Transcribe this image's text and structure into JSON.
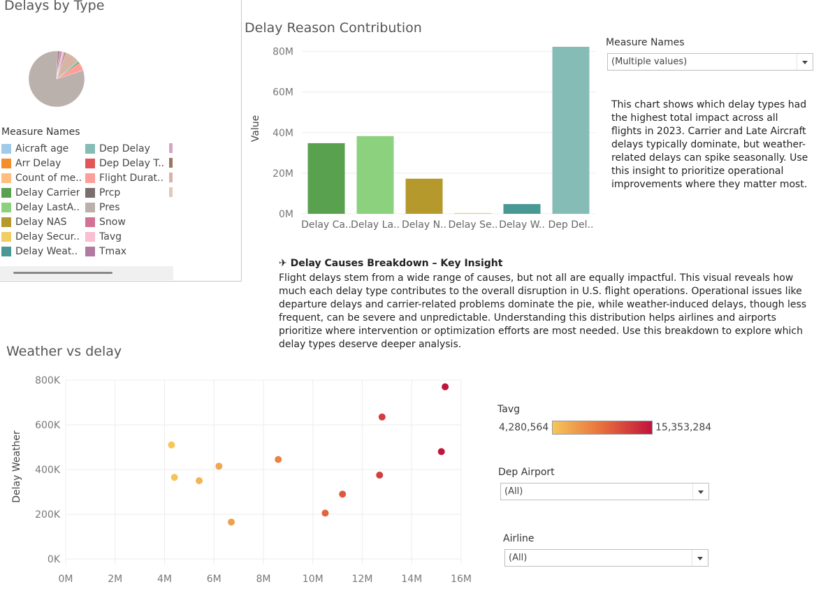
{
  "pie_panel": {
    "title": "Delays by Type",
    "legend_title": "Measure Names",
    "legend_items": [
      {
        "label": "Aicraft age",
        "color": "#a0cbe8"
      },
      {
        "label": "Arr Delay",
        "color": "#f28e2b"
      },
      {
        "label": "Count of me..",
        "color": "#ffbe7d"
      },
      {
        "label": "Delay Carrier",
        "color": "#59a14f"
      },
      {
        "label": "Delay LastA..",
        "color": "#8cd17d"
      },
      {
        "label": "Delay NAS",
        "color": "#b6992d"
      },
      {
        "label": "Delay Secur..",
        "color": "#f1ce63"
      },
      {
        "label": "Delay Weat..",
        "color": "#499894"
      },
      {
        "label": "Dep Delay",
        "color": "#86bcb6"
      },
      {
        "label": "Dep Delay T..",
        "color": "#e15759"
      },
      {
        "label": "Flight Durat..",
        "color": "#ff9d9a"
      },
      {
        "label": "Prcp",
        "color": "#79706e"
      },
      {
        "label": "Pres",
        "color": "#bab0ac"
      },
      {
        "label": "Snow",
        "color": "#d37295"
      },
      {
        "label": "Tavg",
        "color": "#fabfd2"
      },
      {
        "label": "Tmax",
        "color": "#b07aa1"
      },
      {
        "label": "",
        "color": "#d4a6c8"
      },
      {
        "label": "",
        "color": "#9d7660"
      },
      {
        "label": "",
        "color": "#d7b5a6"
      },
      {
        "label": "",
        "color": "#e3c9b9"
      }
    ]
  },
  "bar_panel": {
    "title": "Delay Reason Contribution",
    "description": "This chart shows which delay types had the highest total impact across all flights in 2023. Carrier and Late Aircraft delays typically dominate, but weather-related delays can spike seasonally. Use this insight to prioritize operational improvements where they matter most."
  },
  "measure_filter": {
    "label": "Measure Names",
    "value": "(Multiple values)"
  },
  "insight": {
    "icon": "airplane-icon",
    "heading": "✈ Delay Causes Breakdown – Key Insight",
    "body": "Flight delays stem from a wide range of causes, but not all are equally impactful. This visual reveals how much each delay type contributes to the overall disruption in U.S. flight operations. Operational issues like departure delays and carrier-related problems dominate the pie, while weather-induced delays, though less frequent, can be severe and unpredictable. Understanding this distribution helps airlines and airports prioritize where intervention or optimization efforts are most needed. Use this breakdown to explore which delay types deserve deeper analysis."
  },
  "scatter_panel": {
    "title": "Weather vs delay"
  },
  "tavg_legend": {
    "label": "Tavg",
    "min_label": "4,280,564",
    "max_label": "15,353,284",
    "min_color": "#f5c65a",
    "max_color": "#c0143c"
  },
  "dep_airport_filter": {
    "label": "Dep Airport",
    "value": "(All)"
  },
  "airline_filter": {
    "label": "Airline",
    "value": "(All)"
  },
  "chart_data": [
    {
      "type": "pie",
      "title": "Delays by Type",
      "legend_title": "Measure Names",
      "slices": [
        {
          "name": "Pres",
          "value": 80,
          "color": "#bab0ac"
        },
        {
          "name": "Prcp",
          "value": 0.8,
          "color": "#79706e"
        },
        {
          "name": "Snow",
          "value": 0.8,
          "color": "#d37295"
        },
        {
          "name": "Tmax",
          "value": 0.8,
          "color": "#b07aa1"
        },
        {
          "name": "Tavg",
          "value": 0.8,
          "color": "#fabfd2"
        },
        {
          "name": "",
          "value": 0.8,
          "color": "#d4a6c8"
        },
        {
          "name": "",
          "value": 0.8,
          "color": "#9d7660"
        },
        {
          "name": "",
          "value": 8.4,
          "color": "#d7b5a6"
        },
        {
          "name": "Dep Delay",
          "value": 0.6,
          "color": "#86bcb6"
        },
        {
          "name": "Delay Carrier",
          "value": 0.8,
          "color": "#59a14f"
        },
        {
          "name": "Flight Durat..",
          "value": 4.6,
          "color": "#ff9d9a"
        }
      ]
    },
    {
      "type": "bar",
      "title": "Delay Reason Contribution",
      "ylabel": "Value",
      "xlabel": "",
      "ylim": [
        0,
        84000000
      ],
      "yticks": [
        0,
        20000000,
        40000000,
        60000000,
        80000000
      ],
      "ytick_labels": [
        "0M",
        "20M",
        "40M",
        "60M",
        "80M"
      ],
      "categories": [
        "Delay Ca..",
        "Delay La..",
        "Delay N..",
        "Delay Se..",
        "Delay W..",
        "Dep Del.."
      ],
      "values": [
        34800000,
        38300000,
        17300000,
        400000,
        4800000,
        82300000
      ],
      "colors": [
        "#59a14f",
        "#8cd17d",
        "#b6992d",
        "#f1ce63",
        "#499894",
        "#86bcb6"
      ]
    },
    {
      "type": "scatter",
      "title": "Weather vs delay",
      "ylabel": "Delay Weather",
      "xlabel": "",
      "xlim": [
        0,
        16000000
      ],
      "ylim": [
        0,
        800000
      ],
      "xticks": [
        0,
        2000000,
        4000000,
        6000000,
        8000000,
        10000000,
        12000000,
        14000000,
        16000000
      ],
      "xtick_labels": [
        "0M",
        "2M",
        "4M",
        "6M",
        "8M",
        "10M",
        "12M",
        "14M",
        "16M"
      ],
      "yticks": [
        0,
        200000,
        400000,
        600000,
        800000
      ],
      "ytick_labels": [
        "0K",
        "200K",
        "400K",
        "600K",
        "800K"
      ],
      "color_measure": "Tavg",
      "points": [
        {
          "x": 4280564,
          "y": 510000
        },
        {
          "x": 4400000,
          "y": 365000
        },
        {
          "x": 5400000,
          "y": 350000
        },
        {
          "x": 6200000,
          "y": 415000
        },
        {
          "x": 6700000,
          "y": 165000
        },
        {
          "x": 8600000,
          "y": 445000
        },
        {
          "x": 10500000,
          "y": 205000
        },
        {
          "x": 11200000,
          "y": 290000
        },
        {
          "x": 12700000,
          "y": 375000
        },
        {
          "x": 12800000,
          "y": 635000
        },
        {
          "x": 15200000,
          "y": 480000
        },
        {
          "x": 15353284,
          "y": 770000
        }
      ]
    }
  ]
}
